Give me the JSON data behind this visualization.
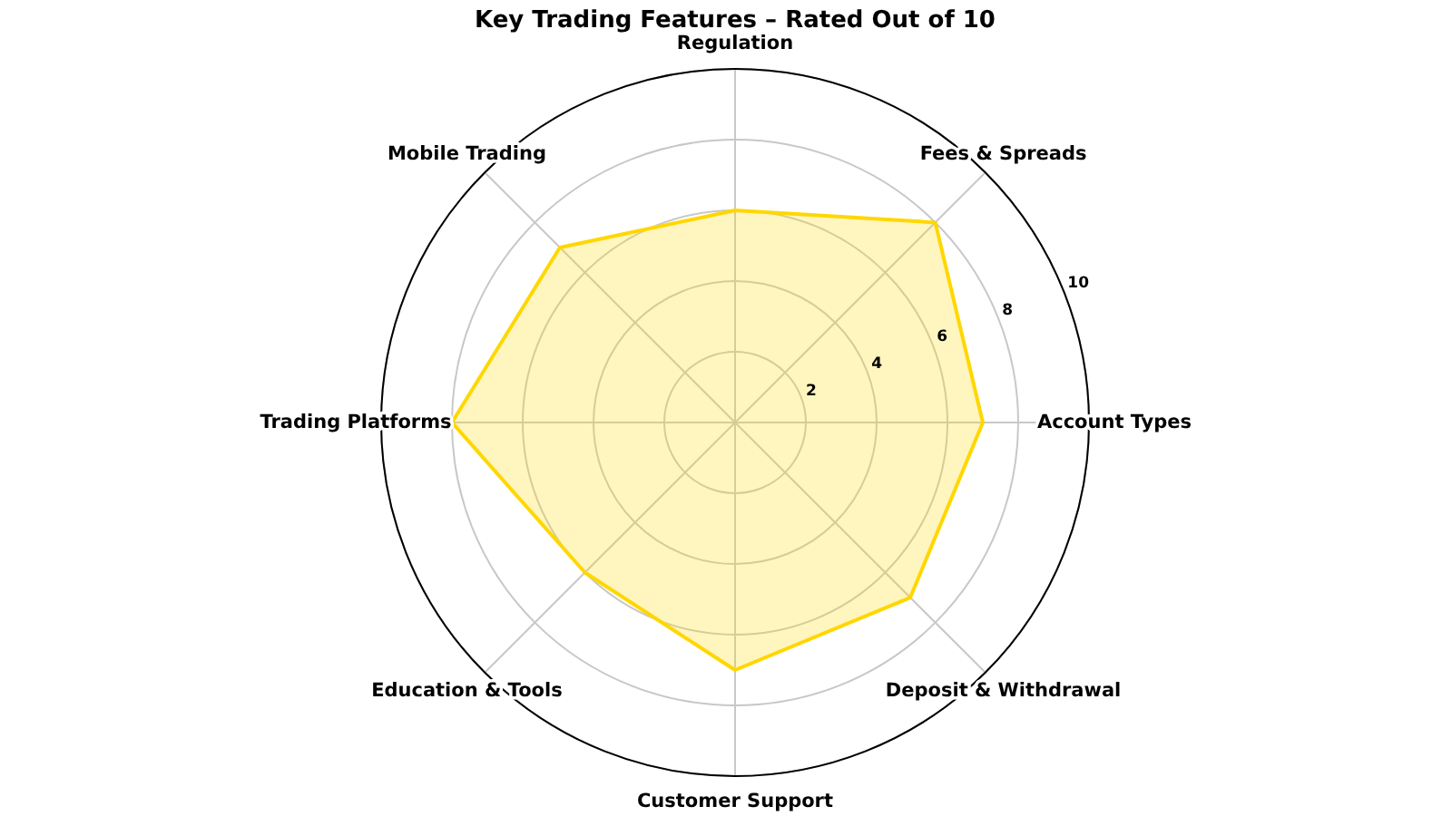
{
  "chart_data": {
    "type": "radar",
    "title": "Key Trading Features – Rated Out of 10",
    "categories": [
      "Regulation",
      "Fees & Spreads",
      "Account Types",
      "Deposit & Withdrawal",
      "Customer Support",
      "Education & Tools",
      "Trading Platforms",
      "Mobile Trading"
    ],
    "series": [
      {
        "color": "#ffd700",
        "values": [
          6,
          8,
          7,
          7,
          7,
          6,
          8,
          7
        ]
      }
    ],
    "ylim": [
      0,
      10
    ],
    "yticks": [
      2,
      4,
      6,
      8,
      10
    ],
    "grid": true
  }
}
